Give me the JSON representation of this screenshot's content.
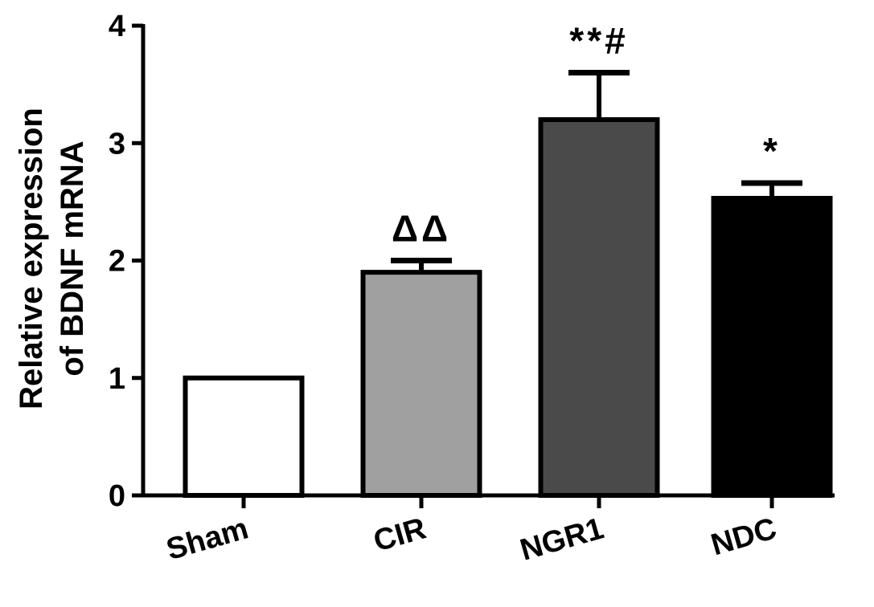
{
  "chart_data": {
    "type": "bar",
    "title": "",
    "xlabel": "",
    "ylabel_lines": [
      "Relative expression",
      "of BDNF mRNA"
    ],
    "ylim": [
      0,
      4
    ],
    "yticks": [
      "0",
      "1",
      "2",
      "3",
      "4"
    ],
    "categories": [
      "Sham",
      "CIR",
      "NGR1",
      "NDC"
    ],
    "values": [
      1.0,
      1.9,
      3.2,
      2.53
    ],
    "errors": [
      0.0,
      0.1,
      0.4,
      0.13
    ],
    "significance": [
      "",
      "ΔΔ",
      "**#",
      "*"
    ],
    "bar_colors": [
      "#ffffff",
      "#a0a0a0",
      "#4a4a4a",
      "#000000"
    ],
    "grid": false,
    "legend": "none"
  }
}
